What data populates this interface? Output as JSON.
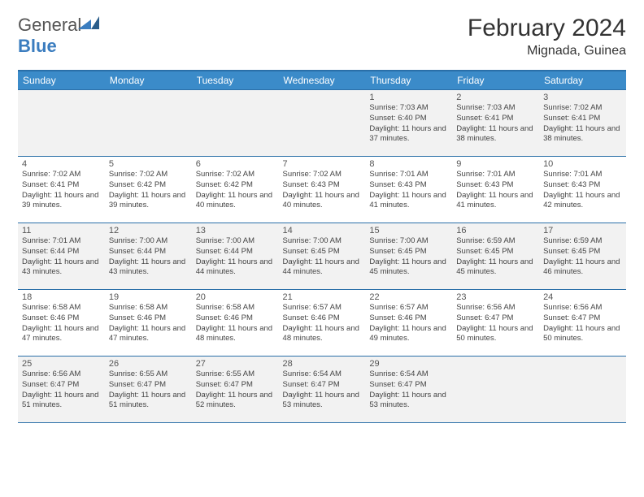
{
  "logo": {
    "text1": "General",
    "text2": "Blue"
  },
  "title": "February 2024",
  "location": "Mignada, Guinea",
  "colors": {
    "header_bg": "#3b8bc9",
    "border": "#2a6fa8",
    "alt_row": "#f2f2f2",
    "logo_blue": "#3b7dbf"
  },
  "dayHeaders": [
    "Sunday",
    "Monday",
    "Tuesday",
    "Wednesday",
    "Thursday",
    "Friday",
    "Saturday"
  ],
  "weeks": [
    [
      null,
      null,
      null,
      null,
      {
        "n": "1",
        "sr": "7:03 AM",
        "ss": "6:40 PM",
        "dl": "11 hours and 37 minutes."
      },
      {
        "n": "2",
        "sr": "7:03 AM",
        "ss": "6:41 PM",
        "dl": "11 hours and 38 minutes."
      },
      {
        "n": "3",
        "sr": "7:02 AM",
        "ss": "6:41 PM",
        "dl": "11 hours and 38 minutes."
      }
    ],
    [
      {
        "n": "4",
        "sr": "7:02 AM",
        "ss": "6:41 PM",
        "dl": "11 hours and 39 minutes."
      },
      {
        "n": "5",
        "sr": "7:02 AM",
        "ss": "6:42 PM",
        "dl": "11 hours and 39 minutes."
      },
      {
        "n": "6",
        "sr": "7:02 AM",
        "ss": "6:42 PM",
        "dl": "11 hours and 40 minutes."
      },
      {
        "n": "7",
        "sr": "7:02 AM",
        "ss": "6:43 PM",
        "dl": "11 hours and 40 minutes."
      },
      {
        "n": "8",
        "sr": "7:01 AM",
        "ss": "6:43 PM",
        "dl": "11 hours and 41 minutes."
      },
      {
        "n": "9",
        "sr": "7:01 AM",
        "ss": "6:43 PM",
        "dl": "11 hours and 41 minutes."
      },
      {
        "n": "10",
        "sr": "7:01 AM",
        "ss": "6:43 PM",
        "dl": "11 hours and 42 minutes."
      }
    ],
    [
      {
        "n": "11",
        "sr": "7:01 AM",
        "ss": "6:44 PM",
        "dl": "11 hours and 43 minutes."
      },
      {
        "n": "12",
        "sr": "7:00 AM",
        "ss": "6:44 PM",
        "dl": "11 hours and 43 minutes."
      },
      {
        "n": "13",
        "sr": "7:00 AM",
        "ss": "6:44 PM",
        "dl": "11 hours and 44 minutes."
      },
      {
        "n": "14",
        "sr": "7:00 AM",
        "ss": "6:45 PM",
        "dl": "11 hours and 44 minutes."
      },
      {
        "n": "15",
        "sr": "7:00 AM",
        "ss": "6:45 PM",
        "dl": "11 hours and 45 minutes."
      },
      {
        "n": "16",
        "sr": "6:59 AM",
        "ss": "6:45 PM",
        "dl": "11 hours and 45 minutes."
      },
      {
        "n": "17",
        "sr": "6:59 AM",
        "ss": "6:45 PM",
        "dl": "11 hours and 46 minutes."
      }
    ],
    [
      {
        "n": "18",
        "sr": "6:58 AM",
        "ss": "6:46 PM",
        "dl": "11 hours and 47 minutes."
      },
      {
        "n": "19",
        "sr": "6:58 AM",
        "ss": "6:46 PM",
        "dl": "11 hours and 47 minutes."
      },
      {
        "n": "20",
        "sr": "6:58 AM",
        "ss": "6:46 PM",
        "dl": "11 hours and 48 minutes."
      },
      {
        "n": "21",
        "sr": "6:57 AM",
        "ss": "6:46 PM",
        "dl": "11 hours and 48 minutes."
      },
      {
        "n": "22",
        "sr": "6:57 AM",
        "ss": "6:46 PM",
        "dl": "11 hours and 49 minutes."
      },
      {
        "n": "23",
        "sr": "6:56 AM",
        "ss": "6:47 PM",
        "dl": "11 hours and 50 minutes."
      },
      {
        "n": "24",
        "sr": "6:56 AM",
        "ss": "6:47 PM",
        "dl": "11 hours and 50 minutes."
      }
    ],
    [
      {
        "n": "25",
        "sr": "6:56 AM",
        "ss": "6:47 PM",
        "dl": "11 hours and 51 minutes."
      },
      {
        "n": "26",
        "sr": "6:55 AM",
        "ss": "6:47 PM",
        "dl": "11 hours and 51 minutes."
      },
      {
        "n": "27",
        "sr": "6:55 AM",
        "ss": "6:47 PM",
        "dl": "11 hours and 52 minutes."
      },
      {
        "n": "28",
        "sr": "6:54 AM",
        "ss": "6:47 PM",
        "dl": "11 hours and 53 minutes."
      },
      {
        "n": "29",
        "sr": "6:54 AM",
        "ss": "6:47 PM",
        "dl": "11 hours and 53 minutes."
      },
      null,
      null
    ]
  ],
  "labels": {
    "sunrise": "Sunrise:",
    "sunset": "Sunset:",
    "daylight": "Daylight:"
  }
}
